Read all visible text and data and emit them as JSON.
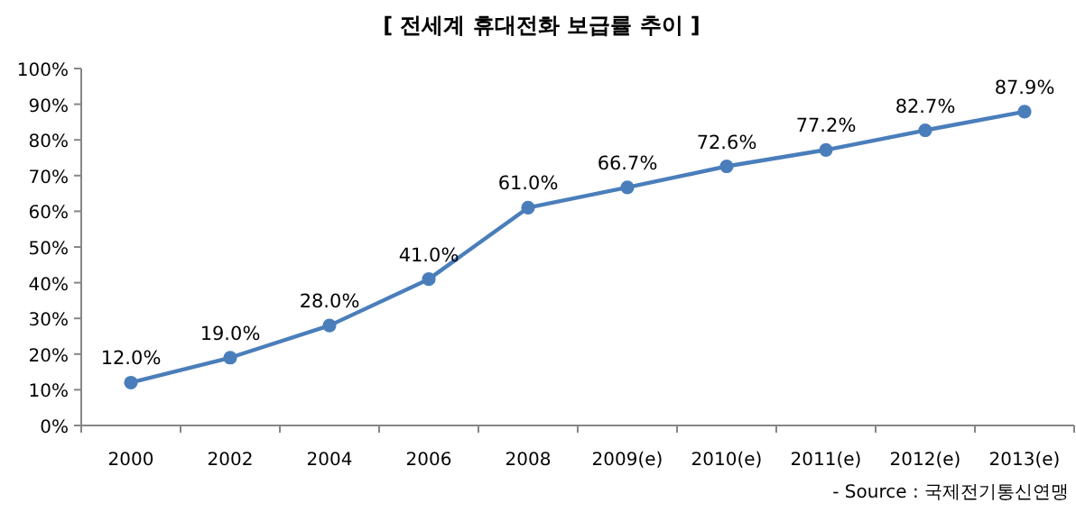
{
  "chart_data": {
    "type": "line",
    "title": "[ 전세계 휴대전화 보급률 추이 ]",
    "annotations": [
      "- Source : 국제전기통신연맹"
    ],
    "categories": [
      "2000",
      "2002",
      "2004",
      "2006",
      "2008",
      "2009(e)",
      "2010(e)",
      "2011(e)",
      "2012(e)",
      "2013(e)"
    ],
    "series": [
      {
        "color": "#4a7ebb",
        "values": [
          12.0,
          19.0,
          28.0,
          41.0,
          61.0,
          66.7,
          72.6,
          77.2,
          82.7,
          87.9
        ],
        "value_labels": [
          "12.0%",
          "19.0%",
          "28.0%",
          "41.0%",
          "61.0%",
          "66.7%",
          "72.6%",
          "77.2%",
          "82.7%",
          "87.9%"
        ]
      }
    ],
    "ylim": [
      0,
      100
    ],
    "yticks": [
      {
        "value": 0,
        "label": "0%"
      },
      {
        "value": 10,
        "label": "10%"
      },
      {
        "value": 20,
        "label": "20%"
      },
      {
        "value": 30,
        "label": "30%"
      },
      {
        "value": 40,
        "label": "40%"
      },
      {
        "value": 50,
        "label": "50%"
      },
      {
        "value": 60,
        "label": "60%"
      },
      {
        "value": 70,
        "label": "70%"
      },
      {
        "value": 80,
        "label": "80%"
      },
      {
        "value": 90,
        "label": "90%"
      },
      {
        "value": 100,
        "label": "100%"
      }
    ],
    "grid": false,
    "marker": "circle",
    "line_style": "solid"
  }
}
